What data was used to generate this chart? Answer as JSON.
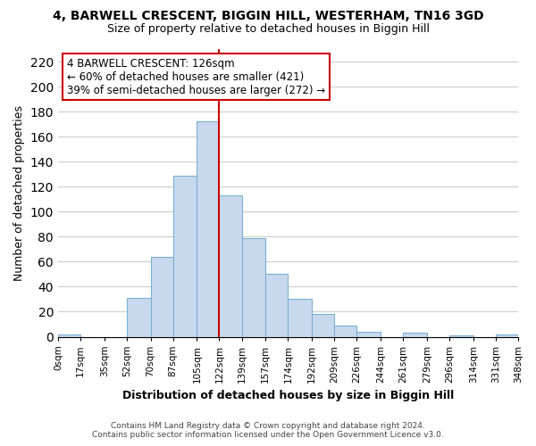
{
  "title": "4, BARWELL CRESCENT, BIGGIN HILL, WESTERHAM, TN16 3GD",
  "subtitle": "Size of property relative to detached houses in Biggin Hill",
  "xlabel": "Distribution of detached houses by size in Biggin Hill",
  "ylabel": "Number of detached properties",
  "bin_edges": [
    0,
    17,
    35,
    52,
    70,
    87,
    105,
    122,
    139,
    157,
    174,
    192,
    209,
    226,
    244,
    261,
    279,
    296,
    314,
    331,
    348
  ],
  "bin_labels": [
    "0sqm",
    "17sqm",
    "35sqm",
    "52sqm",
    "70sqm",
    "87sqm",
    "105sqm",
    "122sqm",
    "139sqm",
    "157sqm",
    "174sqm",
    "192sqm",
    "209sqm",
    "226sqm",
    "244sqm",
    "261sqm",
    "279sqm",
    "296sqm",
    "314sqm",
    "331sqm",
    "348sqm"
  ],
  "bar_heights": [
    2,
    0,
    0,
    31,
    64,
    129,
    172,
    113,
    79,
    50,
    30,
    18,
    9,
    4,
    0,
    3,
    0,
    1,
    0,
    2
  ],
  "bar_color": "#c8d9ee",
  "bar_edge_color": "#7bafd4",
  "property_line_x": 122,
  "property_line_color": "#cc0000",
  "ylim": [
    0,
    230
  ],
  "yticks": [
    0,
    20,
    40,
    60,
    80,
    100,
    120,
    140,
    160,
    180,
    200,
    220
  ],
  "annotation_title": "4 BARWELL CRESCENT: 126sqm",
  "annotation_line1": "← 60% of detached houses are smaller (421)",
  "annotation_line2": "39% of semi-detached houses are larger (272) →",
  "footer_line1": "Contains HM Land Registry data © Crown copyright and database right 2024.",
  "footer_line2": "Contains public sector information licensed under the Open Government Licence v3.0.",
  "background_color": "#ffffff",
  "grid_color": "#cccccc"
}
